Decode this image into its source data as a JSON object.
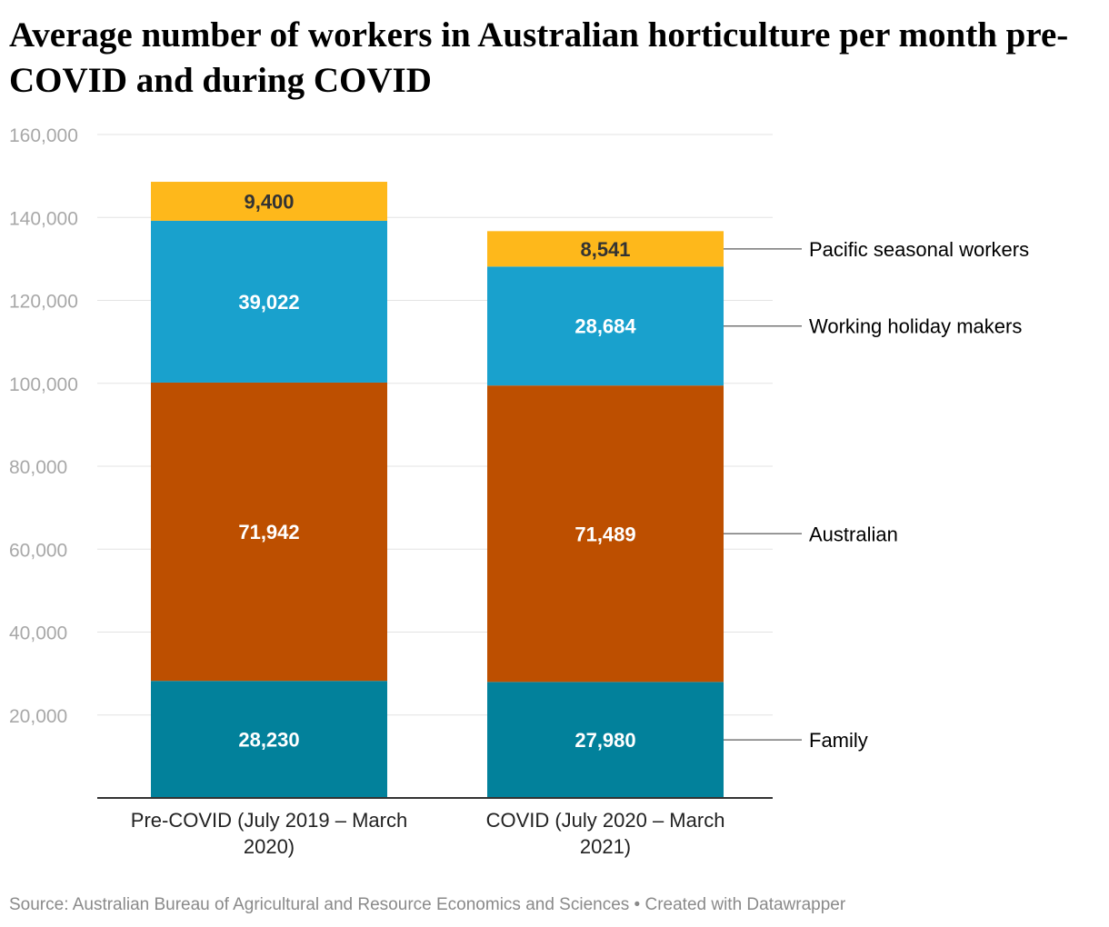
{
  "title": "Average number of workers in Australian horticulture per month pre-COVID and during COVID",
  "footer": {
    "source": "Source: Australian Bureau of Agricultural and Resource Economics and Sciences",
    "separator": "•",
    "credit": "Created with Datawrapper"
  },
  "chart_data": {
    "type": "bar",
    "stacked": true,
    "categories": [
      "Pre-COVID (July 2019 – March 2020)",
      "COVID (July 2020 – March 2021)"
    ],
    "series": [
      {
        "name": "Family",
        "values": [
          28230,
          27980
        ],
        "color": "#02819b",
        "labels": [
          "28,230",
          "27,980"
        ],
        "label_color": "#ffffff"
      },
      {
        "name": "Australian",
        "values": [
          71942,
          71489
        ],
        "color": "#bd4f00",
        "labels": [
          "71,942",
          "71,489"
        ],
        "label_color": "#ffffff"
      },
      {
        "name": "Working holiday makers",
        "values": [
          39022,
          28684
        ],
        "color": "#19a1cd",
        "labels": [
          "39,022",
          "28,684"
        ],
        "label_color": "#ffffff"
      },
      {
        "name": "Pacific seasonal workers",
        "values": [
          9400,
          8541
        ],
        "color": "#feb81b",
        "labels": [
          "9,400",
          "8,541"
        ],
        "label_color": "#333333"
      }
    ],
    "ylim": [
      0,
      160000
    ],
    "yticks": [
      20000,
      40000,
      60000,
      80000,
      100000,
      120000,
      140000,
      160000
    ],
    "ytick_labels": [
      "20,000",
      "40,000",
      "60,000",
      "80,000",
      "100,000",
      "120,000",
      "140,000",
      "160,000"
    ],
    "grid": true,
    "legend": "direct labels right"
  }
}
